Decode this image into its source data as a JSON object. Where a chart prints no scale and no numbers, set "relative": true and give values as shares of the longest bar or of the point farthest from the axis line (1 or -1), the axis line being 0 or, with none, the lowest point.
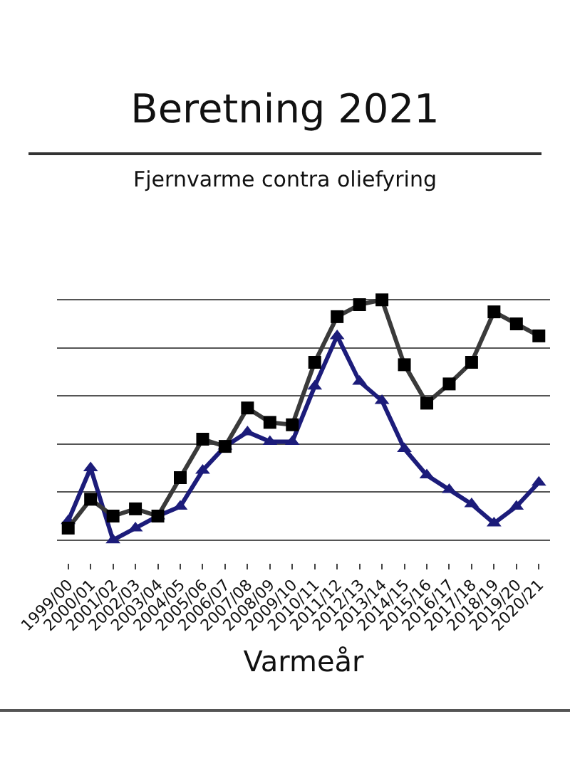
{
  "chart_data": {
    "type": "line",
    "title": "Beretning 2021",
    "subtitle": "Fjernvarme contra oliefyring",
    "xlabel": "Varmeår",
    "categories": [
      "1999/00",
      "2000/01",
      "2001/02",
      "2002/03",
      "2003/04",
      "2004/05",
      "2005/06",
      "2006/07",
      "2007/08",
      "2008/09",
      "2009/10",
      "2010/11",
      "2011/12",
      "2012/13",
      "2013/14",
      "2014/15",
      "2015/16",
      "2016/17",
      "2017/18",
      "2018/19",
      "2019/20",
      "2020/21"
    ],
    "relative": true,
    "grid": "y",
    "line_style": "solid",
    "series": [
      {
        "color": "#3a3a3a",
        "marker": "square",
        "values": [
          0.05,
          0.17,
          0.1,
          0.13,
          0.1,
          0.26,
          0.42,
          0.39,
          0.55,
          0.49,
          0.48,
          0.74,
          0.93,
          0.98,
          1,
          0.73,
          0.57,
          0.65,
          0.74,
          0.95,
          0.9,
          0.85
        ]
      },
      {
        "color": "#1c1c7a",
        "marker": "triangle",
        "values": [
          0.08,
          0.3,
          0,
          0.05,
          0.1,
          0.14,
          0.29,
          0.39,
          0.45,
          0.41,
          0.41,
          0.64,
          0.85,
          0.66,
          0.58,
          0.38,
          0.27,
          0.21,
          0.15,
          0.07,
          0.14,
          0.24
        ]
      }
    ]
  }
}
